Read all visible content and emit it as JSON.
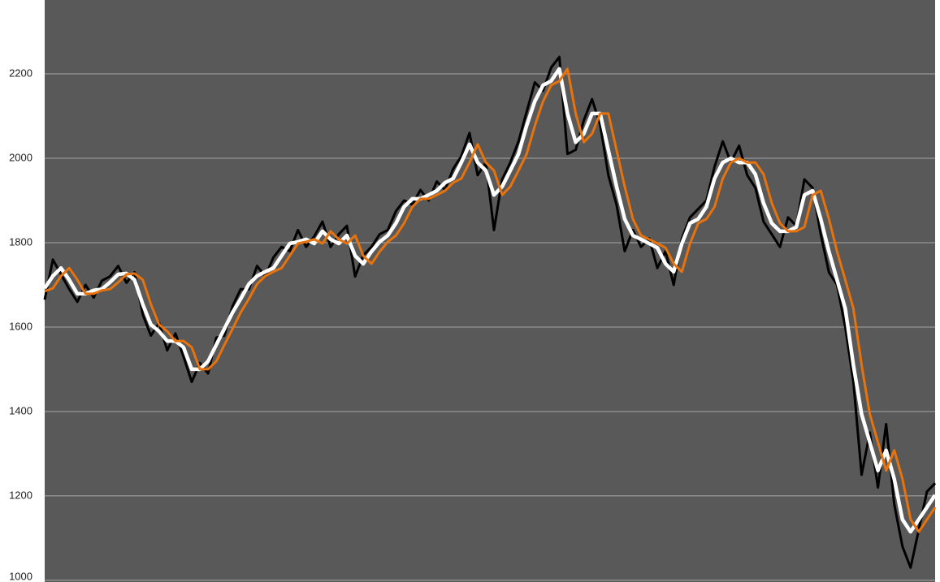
{
  "chart_data": {
    "type": "line",
    "ylim": [
      996,
      2375
    ],
    "yticks": [
      1000,
      1200,
      1400,
      1600,
      1800,
      2000,
      2200
    ],
    "grid": true,
    "series": [
      {
        "color": "#000000",
        "values": [
          1665,
          1760,
          1725,
          1690,
          1660,
          1700,
          1670,
          1710,
          1720,
          1745,
          1705,
          1730,
          1630,
          1580,
          1610,
          1545,
          1585,
          1530,
          1470,
          1515,
          1490,
          1575,
          1580,
          1650,
          1690,
          1690,
          1745,
          1720,
          1765,
          1790,
          1780,
          1830,
          1790,
          1815,
          1850,
          1790,
          1820,
          1840,
          1720,
          1770,
          1790,
          1820,
          1830,
          1875,
          1900,
          1890,
          1925,
          1900,
          1945,
          1925,
          1975,
          2005,
          2060,
          1960,
          1990,
          1830,
          1950,
          1990,
          2040,
          2110,
          2180,
          2160,
          2215,
          2240,
          2010,
          2020,
          2090,
          2140,
          2080,
          1960,
          1890,
          1780,
          1830,
          1790,
          1810,
          1740,
          1780,
          1700,
          1810,
          1860,
          1880,
          1900,
          1980,
          2040,
          1990,
          2030,
          1960,
          1930,
          1850,
          1820,
          1790,
          1860,
          1840,
          1950,
          1930,
          1820,
          1730,
          1700,
          1600,
          1470,
          1250,
          1350,
          1220,
          1370,
          1180,
          1080,
          1030,
          1120,
          1210,
          1230
        ]
      },
      {
        "color": "#ffffff",
        "values": [
          1692,
          1721,
          1740,
          1712,
          1679,
          1679,
          1687,
          1690,
          1706,
          1725,
          1727,
          1712,
          1654,
          1606,
          1590,
          1567,
          1567,
          1552,
          1500,
          1500,
          1519,
          1558,
          1596,
          1635,
          1667,
          1702,
          1721,
          1731,
          1740,
          1769,
          1798,
          1802,
          1808,
          1798,
          1827,
          1808,
          1798,
          1817,
          1769,
          1750,
          1779,
          1802,
          1817,
          1846,
          1885,
          1904,
          1904,
          1913,
          1923,
          1942,
          1952,
          1990,
          2033,
          1990,
          1971,
          1913,
          1933,
          1971,
          2010,
          2077,
          2135,
          2173,
          2183,
          2212,
          2106,
          2038,
          2058,
          2106,
          2106,
          2019,
          1933,
          1856,
          1817,
          1808,
          1798,
          1788,
          1750,
          1731,
          1798,
          1846,
          1856,
          1885,
          1952,
          1990,
          2000,
          1990,
          1990,
          1962,
          1894,
          1846,
          1827,
          1827,
          1837,
          1913,
          1923,
          1856,
          1779,
          1712,
          1644,
          1510,
          1394,
          1327,
          1260,
          1308,
          1240,
          1144,
          1115,
          1144,
          1173,
          1202
        ]
      },
      {
        "color": "#e8720c",
        "values": [
          1685,
          1692,
          1721,
          1740,
          1712,
          1679,
          1679,
          1687,
          1690,
          1706,
          1725,
          1727,
          1712,
          1654,
          1606,
          1590,
          1567,
          1567,
          1552,
          1500,
          1500,
          1519,
          1558,
          1596,
          1635,
          1667,
          1702,
          1721,
          1731,
          1740,
          1769,
          1798,
          1802,
          1808,
          1798,
          1827,
          1808,
          1798,
          1817,
          1769,
          1750,
          1779,
          1802,
          1817,
          1846,
          1885,
          1904,
          1904,
          1913,
          1923,
          1942,
          1952,
          1990,
          2033,
          1990,
          1971,
          1913,
          1933,
          1971,
          2010,
          2077,
          2135,
          2173,
          2183,
          2212,
          2106,
          2038,
          2058,
          2106,
          2106,
          2019,
          1933,
          1856,
          1817,
          1808,
          1798,
          1788,
          1750,
          1731,
          1798,
          1846,
          1856,
          1885,
          1952,
          1990,
          2000,
          1990,
          1990,
          1962,
          1894,
          1846,
          1827,
          1827,
          1837,
          1913,
          1923,
          1856,
          1779,
          1712,
          1644,
          1510,
          1394,
          1327,
          1260,
          1308,
          1240,
          1144,
          1115,
          1144,
          1173
        ]
      }
    ]
  }
}
